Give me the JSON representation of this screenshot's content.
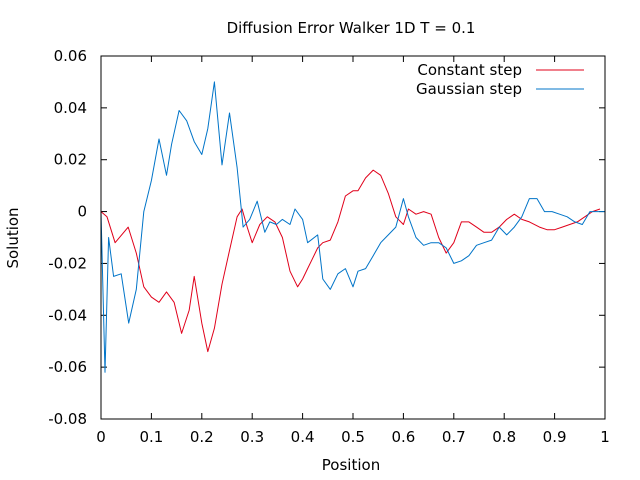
{
  "chart_data": {
    "type": "line",
    "title": "Diffusion Error Walker 1D T = 0.1",
    "xlabel": "Position",
    "ylabel": "Solution",
    "xlim": [
      0,
      1
    ],
    "ylim": [
      -0.08,
      0.06
    ],
    "x_ticks": [
      0,
      0.1,
      0.2,
      0.3,
      0.4,
      0.5,
      0.6,
      0.7,
      0.8,
      0.9,
      1
    ],
    "x_tick_labels": [
      "0",
      "0.1",
      "0.2",
      "0.3",
      "0.4",
      "0.5",
      "0.6",
      "0.7",
      "0.8",
      "0.9",
      "1"
    ],
    "y_ticks": [
      -0.08,
      -0.06,
      -0.04,
      -0.02,
      0,
      0.02,
      0.04,
      0.06
    ],
    "y_tick_labels": [
      "-0.08",
      "-0.06",
      "-0.04",
      "-0.02",
      "0",
      "0.02",
      "0.04",
      "0.06"
    ],
    "grid": false,
    "legend_position": "top-right",
    "series": [
      {
        "name": "Constant step",
        "color": "#e0001a",
        "x": [
          0,
          0.012,
          0.028,
          0.054,
          0.07,
          0.085,
          0.1,
          0.115,
          0.13,
          0.145,
          0.16,
          0.175,
          0.185,
          0.2,
          0.212,
          0.225,
          0.24,
          0.255,
          0.27,
          0.28,
          0.29,
          0.3,
          0.315,
          0.33,
          0.345,
          0.36,
          0.375,
          0.39,
          0.4,
          0.41,
          0.42,
          0.43,
          0.44,
          0.455,
          0.47,
          0.485,
          0.5,
          0.51,
          0.525,
          0.54,
          0.555,
          0.57,
          0.585,
          0.6,
          0.61,
          0.625,
          0.64,
          0.655,
          0.67,
          0.685,
          0.7,
          0.715,
          0.73,
          0.745,
          0.76,
          0.775,
          0.79,
          0.805,
          0.82,
          0.835,
          0.85,
          0.87,
          0.885,
          0.9,
          0.915,
          0.93,
          0.945,
          0.96,
          0.975,
          0.99
        ],
        "y": [
          0,
          -0.002,
          -0.012,
          -0.006,
          -0.016,
          -0.029,
          -0.033,
          -0.035,
          -0.031,
          -0.035,
          -0.047,
          -0.038,
          -0.025,
          -0.043,
          -0.054,
          -0.045,
          -0.028,
          -0.015,
          -0.002,
          0.001,
          -0.006,
          -0.012,
          -0.005,
          -0.002,
          -0.004,
          -0.01,
          -0.023,
          -0.029,
          -0.026,
          -0.022,
          -0.018,
          -0.014,
          -0.012,
          -0.011,
          -0.004,
          0.006,
          0.008,
          0.008,
          0.013,
          0.016,
          0.014,
          0.007,
          -0.002,
          -0.005,
          0.001,
          -0.001,
          0,
          -0.001,
          -0.01,
          -0.016,
          -0.012,
          -0.004,
          -0.004,
          -0.006,
          -0.008,
          -0.008,
          -0.006,
          -0.003,
          -0.001,
          -0.003,
          -0.004,
          -0.006,
          -0.007,
          -0.007,
          -0.006,
          -0.005,
          -0.004,
          -0.002,
          0,
          0.001
        ]
      },
      {
        "name": "Gaussian step",
        "color": "#0074c8",
        "x": [
          0,
          0.008,
          0.015,
          0.025,
          0.04,
          0.055,
          0.07,
          0.085,
          0.1,
          0.115,
          0.13,
          0.14,
          0.155,
          0.17,
          0.185,
          0.2,
          0.212,
          0.225,
          0.24,
          0.255,
          0.27,
          0.282,
          0.295,
          0.31,
          0.325,
          0.335,
          0.348,
          0.36,
          0.375,
          0.385,
          0.4,
          0.41,
          0.43,
          0.44,
          0.455,
          0.47,
          0.485,
          0.5,
          0.51,
          0.525,
          0.54,
          0.555,
          0.57,
          0.585,
          0.6,
          0.61,
          0.625,
          0.64,
          0.655,
          0.67,
          0.685,
          0.7,
          0.715,
          0.73,
          0.745,
          0.76,
          0.775,
          0.79,
          0.805,
          0.82,
          0.835,
          0.85,
          0.865,
          0.88,
          0.895,
          0.91,
          0.925,
          0.94,
          0.955,
          0.97,
          0.985,
          1
        ],
        "y": [
          0,
          -0.062,
          -0.01,
          -0.025,
          -0.024,
          -0.043,
          -0.03,
          0,
          0.012,
          0.028,
          0.014,
          0.026,
          0.039,
          0.035,
          0.027,
          0.022,
          0.032,
          0.05,
          0.018,
          0.038,
          0.017,
          -0.006,
          -0.003,
          0.004,
          -0.008,
          -0.004,
          -0.005,
          -0.003,
          -0.005,
          0.001,
          -0.003,
          -0.012,
          -0.009,
          -0.026,
          -0.03,
          -0.024,
          -0.022,
          -0.029,
          -0.023,
          -0.022,
          -0.017,
          -0.012,
          -0.009,
          -0.006,
          0.005,
          -0.002,
          -0.01,
          -0.013,
          -0.012,
          -0.012,
          -0.014,
          -0.02,
          -0.019,
          -0.017,
          -0.013,
          -0.012,
          -0.011,
          -0.006,
          -0.009,
          -0.006,
          -0.002,
          0.005,
          0.005,
          0,
          0,
          -0.001,
          -0.002,
          -0.004,
          -0.005,
          0,
          0,
          0
        ]
      }
    ]
  }
}
